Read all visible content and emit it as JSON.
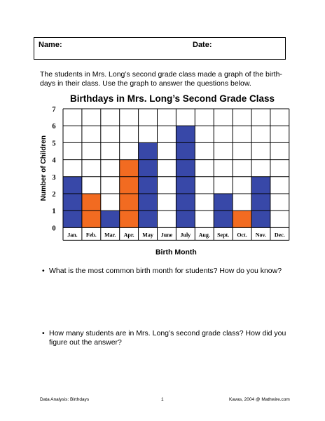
{
  "header": {
    "name_label": "Name:",
    "date_label": "Date:"
  },
  "intro_text": "The students in Mrs. Long’s second grade class made a graph of the birth-days in their class.  Use the graph to answer the questions below.",
  "questions": [
    "What is the most common birth month for students?  How do you know?",
    "How many students are in Mrs. Long’s second grade class?  How did you figure out the answer?"
  ],
  "footer": {
    "left": "Data Analysis:  Birthdays",
    "center": "1",
    "right": "Kavas, 2004 @ Mathwire.com"
  },
  "chart_data": {
    "type": "bar",
    "title": "Birthdays in Mrs. Long’s Second Grade Class",
    "xlabel": "Birth Month",
    "ylabel": "Number of Children",
    "categories": [
      "Jan.",
      "Feb.",
      "Mar.",
      "Apr.",
      "May",
      "June",
      "July",
      "Aug.",
      "Sept.",
      "Oct.",
      "Nov.",
      "Dec."
    ],
    "values": [
      3,
      2,
      1,
      4,
      5,
      0,
      6,
      0,
      2,
      1,
      3,
      0
    ],
    "bar_colors": [
      "#3848a8",
      "#f26b21",
      "#3848a8",
      "#f26b21",
      "#3848a8",
      "#3848a8",
      "#3848a8",
      "#3848a8",
      "#3848a8",
      "#f26b21",
      "#3848a8",
      "#3848a8"
    ],
    "yticks": [
      0,
      1,
      2,
      3,
      4,
      5,
      6,
      7
    ],
    "ylim": [
      0,
      7
    ],
    "grid": true
  }
}
